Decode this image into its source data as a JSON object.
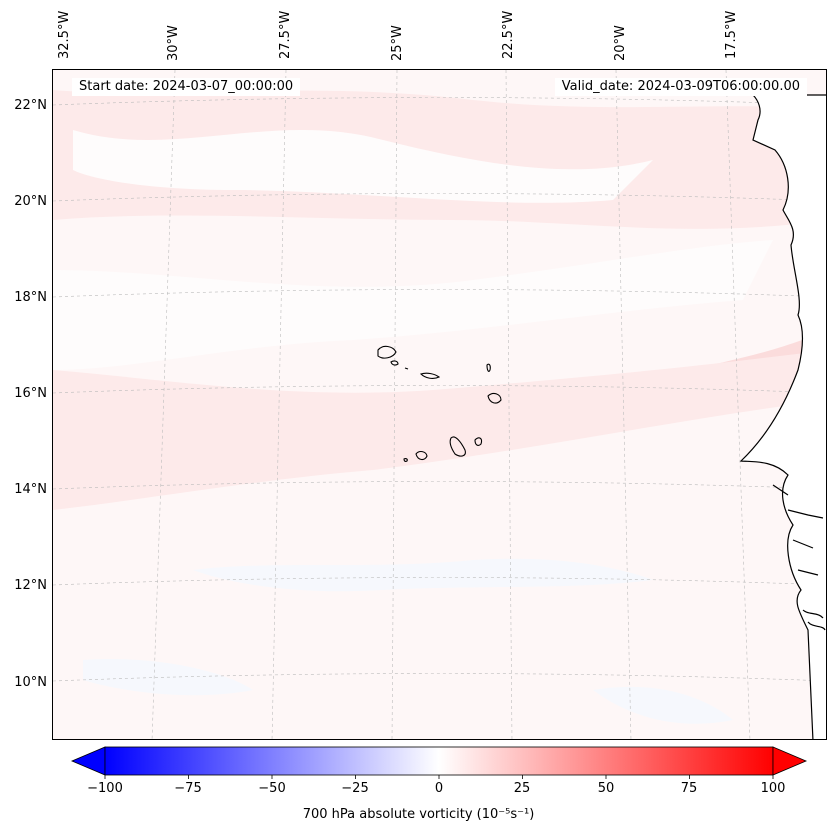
{
  "map": {
    "start_date_text": "Start date: 2024-03-07_00:00:00",
    "valid_date_text": "Valid_date: 2024-03-09T06:00:00.00",
    "lon_labels": [
      "32.5°W",
      "30°W",
      "27.5°W",
      "25°W",
      "22.5°W",
      "20°W",
      "17.5°W"
    ],
    "lat_labels": [
      "22°N",
      "20°N",
      "18°N",
      "16°N",
      "14°N",
      "12°N",
      "10°N"
    ],
    "field_colors": {
      "background": "#fef7f7",
      "near_zero": "#fefcfc",
      "light_pink": "#fdeaea",
      "pink": "#fbdcdc",
      "faint_blue": "#f6f8fd"
    },
    "coast_color": "#000000",
    "grid_color": "#bbbbbb"
  },
  "colorbar": {
    "label": "700 hPa absolute vorticity (10⁻⁵s⁻¹)",
    "ticks": [
      "−100",
      "−75",
      "−50",
      "−25",
      "0",
      "25",
      "50",
      "75",
      "100"
    ],
    "vmin": -100,
    "vmax": 100,
    "extend": "both",
    "colors": {
      "min": "#0000ff",
      "mid": "#ffffff",
      "max": "#ff0000"
    }
  }
}
